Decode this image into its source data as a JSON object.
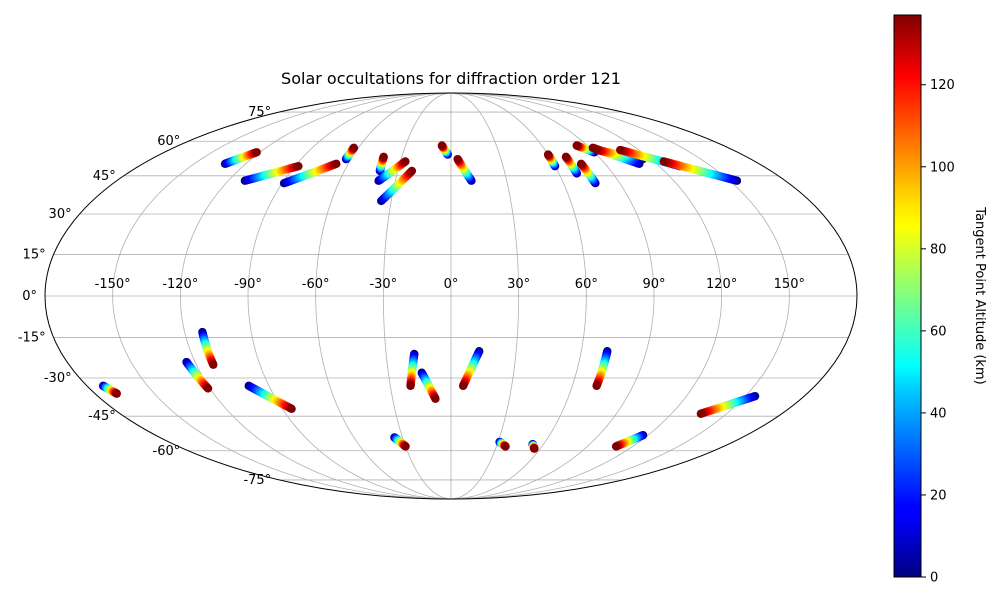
{
  "chart_data": {
    "type": "scatter",
    "projection": "mollweide",
    "title": "Solar occultations for diffraction order 121",
    "grid": true,
    "longitude_ticks": [
      -150,
      -120,
      -90,
      -60,
      -30,
      0,
      30,
      60,
      90,
      120,
      150
    ],
    "longitude_tick_labels": [
      "-150°",
      "-120°",
      "-90°",
      "-60°",
      "-30°",
      "0°",
      "30°",
      "60°",
      "90°",
      "120°",
      "150°"
    ],
    "latitude_ticks": [
      75,
      60,
      45,
      30,
      15,
      0,
      -15,
      -30,
      -45,
      -60,
      -75
    ],
    "latitude_tick_labels": [
      "75°",
      "60°",
      "45°",
      "30°",
      "15°",
      "0°",
      "-15°",
      "-30°",
      "-45°",
      "-60°",
      "-75°"
    ],
    "colorbar": {
      "label": "Tangent Point Altitude (km)",
      "colormap": "jet",
      "range": [
        0,
        137
      ],
      "ticks": [
        0,
        20,
        40,
        60,
        80,
        100,
        120
      ],
      "tick_labels": [
        "0",
        "20",
        "40",
        "60",
        "80",
        "100",
        "120"
      ]
    },
    "occultations": [
      {
        "start": [
          -132,
          50
        ],
        "end": [
          -122,
          55
        ]
      },
      {
        "start": [
          -111,
          43
        ],
        "end": [
          -88,
          49
        ]
      },
      {
        "start": [
          -89,
          42
        ],
        "end": [
          -67,
          50
        ]
      },
      {
        "start": [
          -63,
          52
        ],
        "end": [
          -63,
          57
        ]
      },
      {
        "start": [
          -40,
          47
        ],
        "end": [
          -41,
          53
        ]
      },
      {
        "start": [
          -39,
          43
        ],
        "end": [
          -27,
          51
        ]
      },
      {
        "start": [
          -35,
          35
        ],
        "end": [
          -22,
          47
        ]
      },
      {
        "start": [
          -2,
          54
        ],
        "end": [
          -6,
          58
        ]
      },
      {
        "start": [
          11,
          43
        ],
        "end": [
          4,
          52
        ]
      },
      {
        "start": [
          60,
          49
        ],
        "end": [
          60,
          54
        ]
      },
      {
        "start": [
          70,
          46
        ],
        "end": [
          70,
          53
        ]
      },
      {
        "start": [
          77,
          42
        ],
        "end": [
          76,
          50
        ]
      },
      {
        "start": [
          90,
          55
        ],
        "end": [
          83,
          58
        ]
      },
      {
        "start": [
          110,
          50
        ],
        "end": [
          92,
          57
        ]
      },
      {
        "start": [
          115,
          52
        ],
        "end": [
          93,
          56
        ]
      },
      {
        "start": [
          132,
          49
        ],
        "end": [
          108,
          56
        ]
      },
      {
        "start": [
          154,
          43
        ],
        "end": [
          126,
          51
        ]
      },
      {
        "start": [
          -112,
          -13
        ],
        "end": [
          -112,
          -25
        ]
      },
      {
        "start": [
          -124,
          -24
        ],
        "end": [
          -121,
          -34
        ]
      },
      {
        "start": [
          -100,
          -33
        ],
        "end": [
          -85,
          -42
        ]
      },
      {
        "start": [
          -172,
          -33
        ],
        "end": [
          -169,
          -36
        ]
      },
      {
        "start": [
          -17,
          -21
        ],
        "end": [
          -20,
          -33
        ]
      },
      {
        "start": [
          -14,
          -28
        ],
        "end": [
          -8,
          -38
        ]
      },
      {
        "start": [
          13,
          -20
        ],
        "end": [
          6,
          -33
        ]
      },
      {
        "start": [
          72,
          -20
        ],
        "end": [
          72,
          -33
        ]
      },
      {
        "start": [
          -35,
          -54
        ],
        "end": [
          -30,
          -58
        ]
      },
      {
        "start": [
          31,
          -56
        ],
        "end": [
          36,
          -58
        ]
      },
      {
        "start": [
          53,
          -57
        ],
        "end": [
          56,
          -59
        ]
      },
      {
        "start": [
          117,
          -53
        ],
        "end": [
          109,
          -58
        ]
      },
      {
        "start": [
          155,
          -37
        ],
        "end": [
          136,
          -44
        ]
      }
    ]
  }
}
